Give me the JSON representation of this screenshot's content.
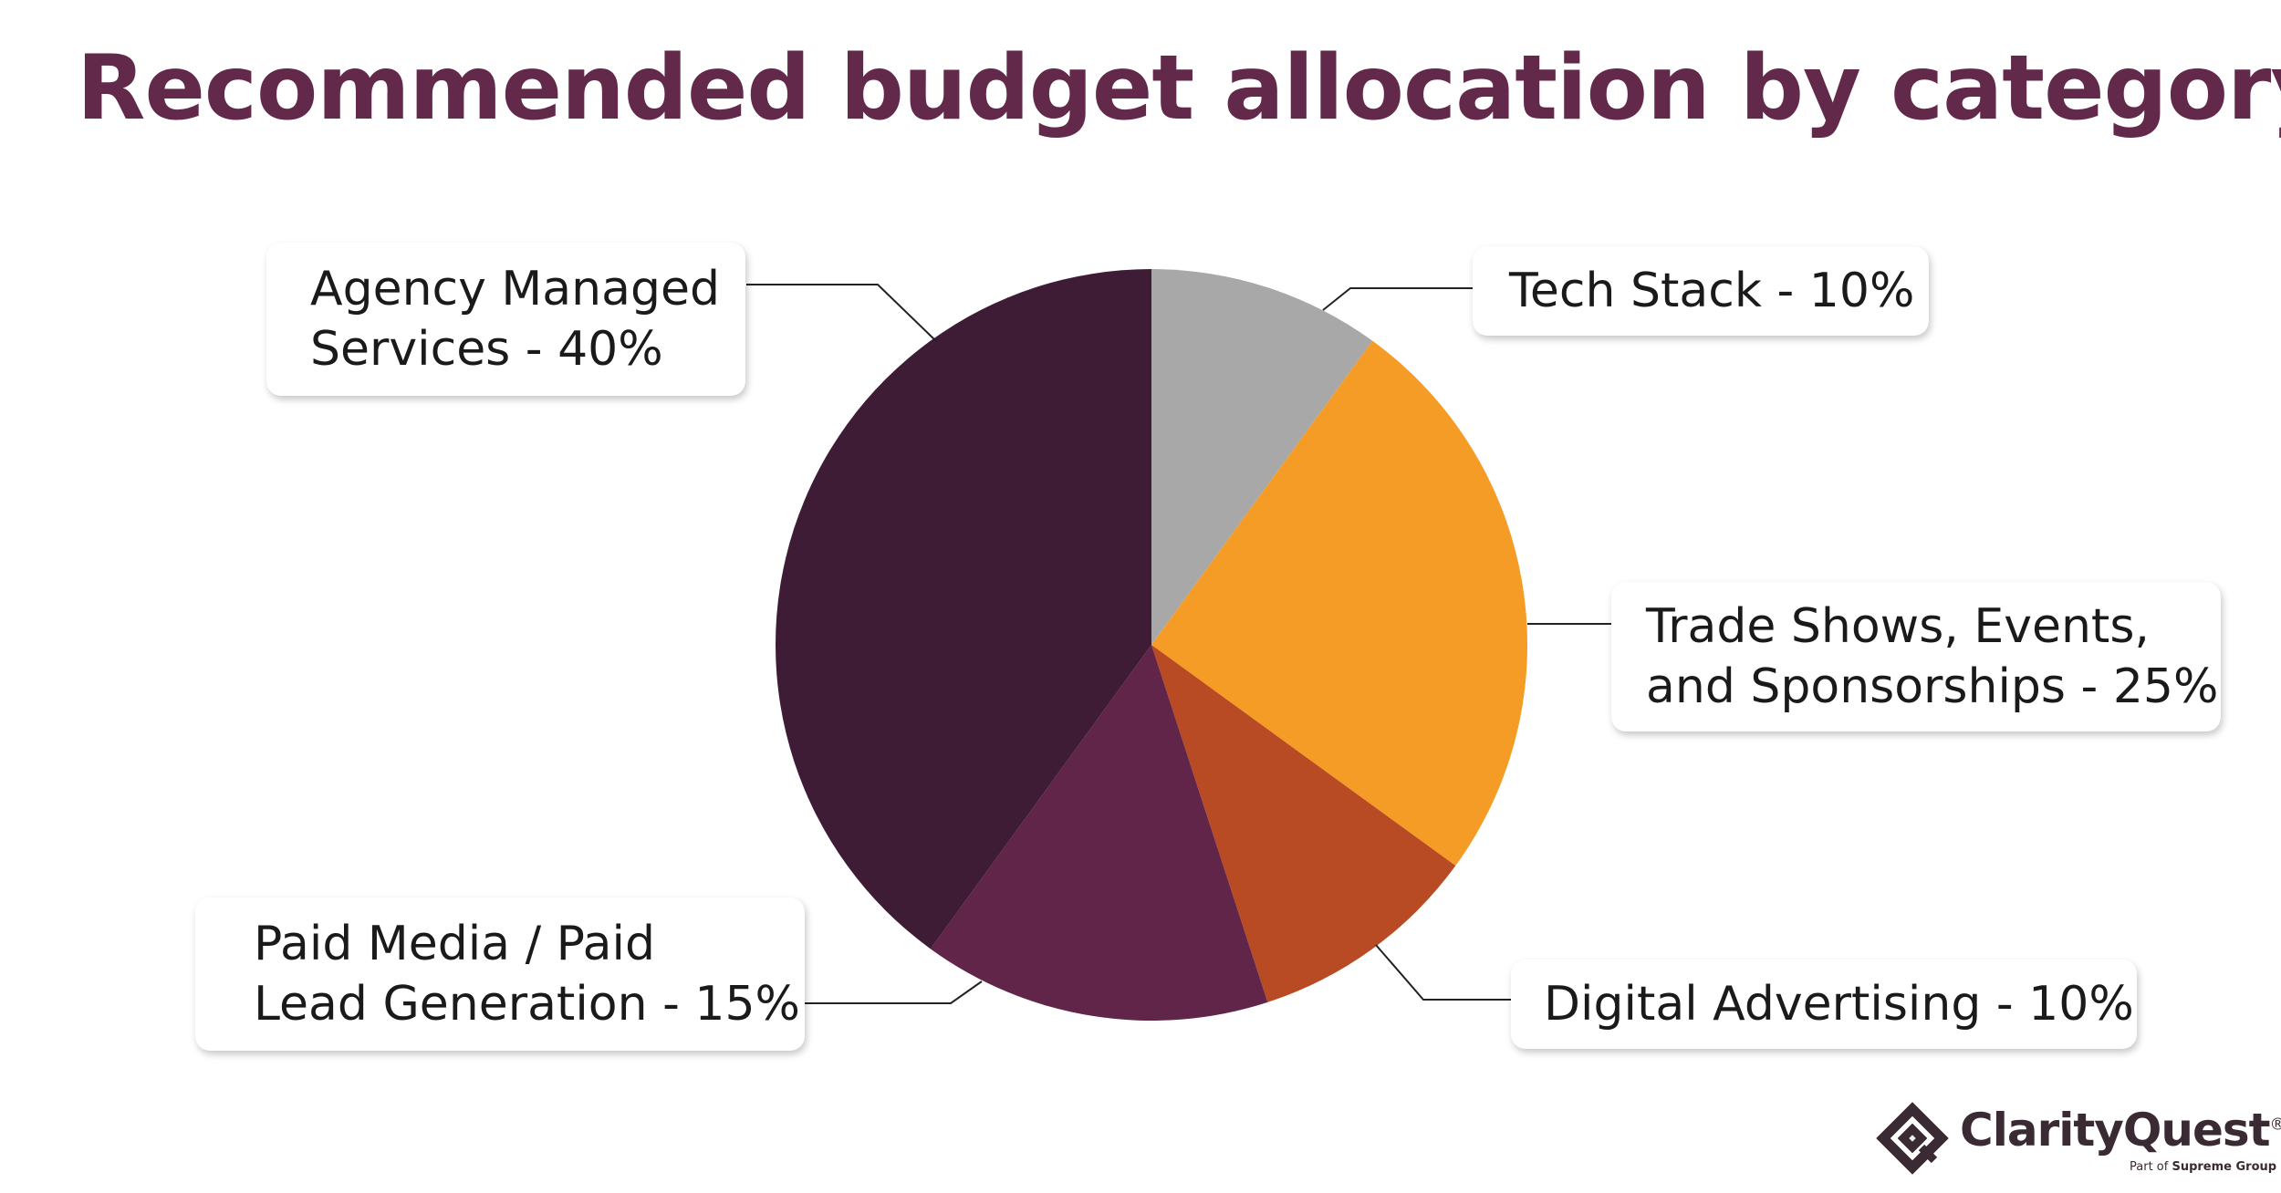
{
  "chart_data": {
    "type": "pie",
    "title": "Recommended budget allocation by category",
    "start_angle_deg": 0,
    "direction": "clockwise",
    "slices": [
      {
        "label_lines": [
          "Tech Stack - 10%"
        ],
        "value": 10,
        "color": "#a8a8a8"
      },
      {
        "label_lines": [
          "Trade Shows, Events,",
          "and Sponsorships - 25%"
        ],
        "value": 25,
        "color": "#f59c27"
      },
      {
        "label_lines": [
          "Digital Advertising - 10%"
        ],
        "value": 10,
        "color": "#b84a24"
      },
      {
        "label_lines": [
          "Paid Media / Paid",
          "Lead Generation - 15%"
        ],
        "value": 15,
        "color": "#62254a"
      },
      {
        "label_lines": [
          "Agency Managed",
          "Services - 40%"
        ],
        "value": 40,
        "color": "#3e1c36"
      }
    ],
    "legend": "callouts"
  },
  "logo": {
    "name": "ClarityQuest",
    "trademark": "®",
    "tagline_prefix": "Part of",
    "tagline_company": "Supreme Group",
    "icon": "diamond-logo-icon",
    "color": "#3a2a33"
  }
}
